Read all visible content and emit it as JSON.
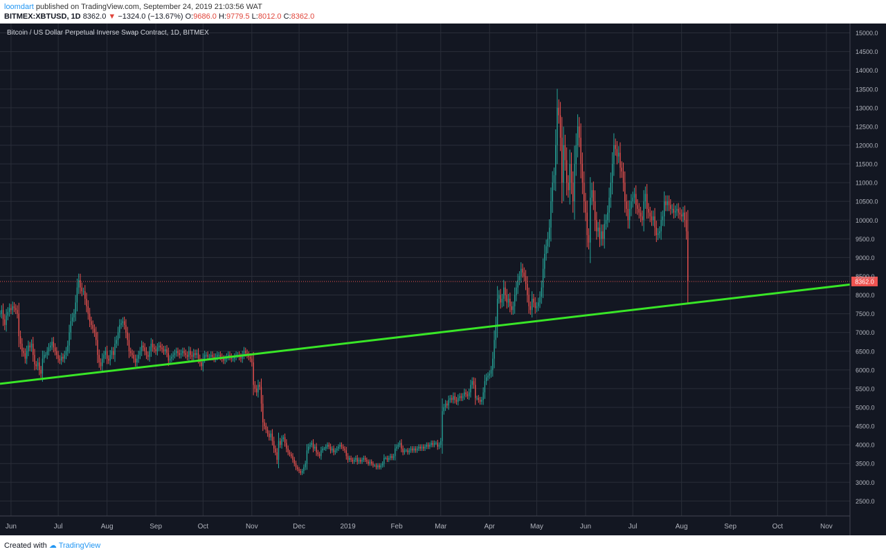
{
  "header": {
    "author": "loomdart",
    "published_text": " published on TradingView.com, September 24, 2019 21:03:56 WAT",
    "symbol": "BITMEX:XBTUSD, 1D",
    "last": "8362.0",
    "change": "−1324.0 (−13.67%)",
    "o_label": "O:",
    "o_value": "9686.0",
    "h_label": "H:",
    "h_value": "9779.5",
    "l_label": "L:",
    "l_value": "8012.0",
    "c_label": "C:",
    "c_value": "8362.0"
  },
  "footer": {
    "created_with": "Created with",
    "brand": "TradingView"
  },
  "colors": {
    "background": "#131722",
    "grid": "#2a2e39",
    "up": "#26a69a",
    "down": "#ef5350",
    "trendline": "#39e627",
    "price_tag": "#ef5350"
  },
  "chart_data": {
    "type": "candlestick",
    "title": "Bitcoin / US Dollar Perpetual Inverse Swap Contract, 1D, BITMEX",
    "y_ticks": [
      2500,
      3000,
      3500,
      4000,
      4500,
      5000,
      5500,
      6000,
      6500,
      7000,
      7500,
      8000,
      8500,
      9000,
      9500,
      10000,
      10500,
      11000,
      11500,
      12000,
      12500,
      13000,
      13500,
      14000,
      14500,
      15000
    ],
    "y_tick_labels": [
      "2500.0",
      "3000.0",
      "3500.0",
      "4000.0",
      "4500.0",
      "5000.0",
      "5500.0",
      "6000.0",
      "6500.0",
      "7000.0",
      "7500.0",
      "8000.0",
      "8500.0",
      "9000.0",
      "9500.0",
      "10000.0",
      "10500.0",
      "11000.0",
      "11500.0",
      "12000.0",
      "12500.0",
      "13000.0",
      "13500.0",
      "14000.0",
      "14500.0",
      "15000.0"
    ],
    "ylim": [
      2100,
      15250
    ],
    "xlim": [
      "2018-05-25",
      "2019-11-16"
    ],
    "x_ticks": [
      {
        "date": "2018-06-01",
        "label": "Jun"
      },
      {
        "date": "2018-07-01",
        "label": "Jul"
      },
      {
        "date": "2018-08-01",
        "label": "Aug"
      },
      {
        "date": "2018-09-01",
        "label": "Sep"
      },
      {
        "date": "2018-10-01",
        "label": "Oct"
      },
      {
        "date": "2018-11-01",
        "label": "Nov"
      },
      {
        "date": "2018-12-01",
        "label": "Dec"
      },
      {
        "date": "2019-01-01",
        "label": "2019"
      },
      {
        "date": "2019-02-01",
        "label": "Feb"
      },
      {
        "date": "2019-03-01",
        "label": "Mar"
      },
      {
        "date": "2019-04-01",
        "label": "Apr"
      },
      {
        "date": "2019-05-01",
        "label": "May"
      },
      {
        "date": "2019-06-01",
        "label": "Jun"
      },
      {
        "date": "2019-07-01",
        "label": "Jul"
      },
      {
        "date": "2019-08-01",
        "label": "Aug"
      },
      {
        "date": "2019-09-01",
        "label": "Sep"
      },
      {
        "date": "2019-10-01",
        "label": "Oct"
      },
      {
        "date": "2019-11-01",
        "label": "Nov"
      }
    ],
    "close_series": {
      "start_date": "2018-05-25",
      "values": [
        7500,
        7600,
        7350,
        7200,
        7450,
        7550,
        7650,
        7600,
        7700,
        7650,
        7600,
        7500,
        6900,
        6700,
        6500,
        6450,
        6300,
        6500,
        6650,
        6600,
        6700,
        6400,
        6150,
        6100,
        6200,
        6000,
        5900,
        6300,
        6400,
        6400,
        6500,
        6600,
        6650,
        6750,
        6600,
        6500,
        6400,
        6300,
        6250,
        6350,
        6300,
        6400,
        6500,
        6650,
        7000,
        7300,
        7400,
        7500,
        7800,
        8200,
        8400,
        8200,
        8100,
        8100,
        7900,
        7700,
        7500,
        7300,
        7200,
        7100,
        7000,
        6800,
        6400,
        6200,
        6100,
        6300,
        6400,
        6500,
        6300,
        6250,
        6400,
        6500,
        6400,
        6700,
        6800,
        7000,
        7200,
        7250,
        7300,
        7200,
        7000,
        6800,
        6500,
        6450,
        6400,
        6300,
        6200,
        6300,
        6400,
        6500,
        6650,
        6600,
        6500,
        6400,
        6350,
        6500,
        6700,
        6600,
        6550,
        6500,
        6600,
        6650,
        6600,
        6550,
        6500,
        6550,
        6450,
        6250,
        6300,
        6350,
        6400,
        6450,
        6500,
        6450,
        6400,
        6450,
        6500,
        6450,
        6400,
        6350,
        6500,
        6400,
        6350,
        6450,
        6400,
        6450,
        6300,
        6200,
        6100,
        6300,
        6400,
        6400,
        6350,
        6350,
        6400,
        6350,
        6300,
        6350,
        6400,
        6400,
        6350,
        6300,
        6250,
        6300,
        6350,
        6400,
        6350,
        6300,
        6300,
        6350,
        6400,
        6400,
        6350,
        6300,
        6400,
        6500,
        6450,
        6400,
        6350,
        6300,
        6200,
        5600,
        5500,
        5400,
        5600,
        5550,
        5100,
        4600,
        4500,
        4400,
        4300,
        4200,
        4300,
        4100,
        3900,
        3800,
        3600,
        4100,
        4000,
        4150,
        4200,
        4050,
        3900,
        3800,
        3750,
        3700,
        3600,
        3500,
        3400,
        3350,
        3300,
        3250,
        3300,
        3400,
        3500,
        3850,
        3950,
        4000,
        4050,
        3900,
        3950,
        3800,
        3750,
        3700,
        3850,
        3900,
        3900,
        3950,
        4000,
        3950,
        3850,
        3900,
        3800,
        3850,
        3900,
        3950,
        4000,
        3950,
        3900,
        3850,
        3700,
        3600,
        3650,
        3600,
        3550,
        3600,
        3650,
        3550,
        3600,
        3550,
        3600,
        3650,
        3600,
        3550,
        3500,
        3550,
        3500,
        3450,
        3450,
        3400,
        3450,
        3400,
        3450,
        3500,
        3650,
        3650,
        3600,
        3650,
        3700,
        3650,
        3700,
        3900,
        3950,
        4000,
        4050,
        3900,
        3800,
        3850,
        3850,
        3800,
        3850,
        3900,
        3850,
        3900,
        3850,
        3900,
        3950,
        3900,
        3950,
        3900,
        3950,
        4000,
        3950,
        4000,
        4050,
        4000,
        4050,
        4050,
        3950,
        4000,
        4100,
        4900,
        5000,
        5100,
        5050,
        5200,
        5250,
        5200,
        5300,
        5200,
        5150,
        5250,
        5300,
        5250,
        5300,
        5400,
        5350,
        5300,
        5400,
        5600,
        5700,
        5600,
        5250,
        5250,
        5200,
        5150,
        5200,
        5400,
        5700,
        5800,
        5850,
        5900,
        6000,
        6300,
        6800,
        7200,
        7900,
        8000,
        7800,
        7900,
        8200,
        8000,
        7800,
        7900,
        7700,
        7600,
        7700,
        8000,
        8200,
        8400,
        8500,
        8700,
        8600,
        8500,
        8300,
        8000,
        7700,
        7600,
        7900,
        7800,
        7650,
        7700,
        7800,
        7950,
        8200,
        8700,
        9100,
        9300,
        9500,
        9800,
        10500,
        11000,
        11200,
        12000,
        13000,
        12800,
        12200,
        11000,
        12000,
        11600,
        11000,
        10800,
        11500,
        11000,
        10500,
        11500,
        12000,
        12500,
        12200,
        11500,
        11000,
        10500,
        10200,
        9600,
        9400,
        10600,
        10800,
        10500,
        10000,
        9700,
        9800,
        9500,
        9700,
        9500,
        9900,
        10000,
        10200,
        10600,
        11000,
        11500,
        12000,
        11900,
        11700,
        11800,
        11400,
        11300,
        11000,
        10500,
        10300,
        10000,
        10300,
        10500,
        10600,
        10700,
        10400,
        10300,
        10200,
        10100,
        10000,
        10500,
        10700,
        10300,
        10200,
        10100,
        10000,
        10100,
        9800,
        9600,
        9650,
        9700,
        10000,
        10100,
        10500,
        10400,
        10500,
        10400,
        10300,
        10300,
        10200,
        10250,
        10300,
        10200,
        10150,
        10100,
        10200,
        10000,
        9700,
        8362
      ]
    },
    "last_price_label": "8362.0",
    "trendline": {
      "start": {
        "date": "2018-05-25",
        "value": 5630
      },
      "end": {
        "date": "2019-11-16",
        "value": 8280
      }
    }
  }
}
